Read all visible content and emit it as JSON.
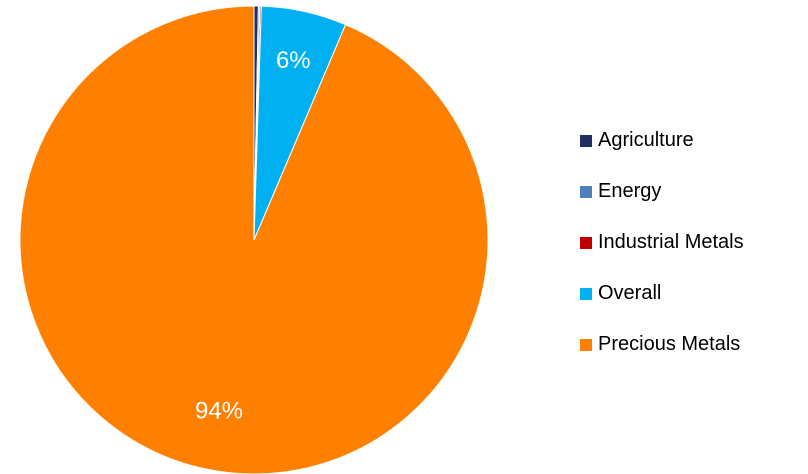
{
  "chart_data": {
    "type": "pie",
    "title": "",
    "categories": [
      "Agriculture",
      "Energy",
      "Industrial Metals",
      "Overall",
      "Precious Metals"
    ],
    "values": [
      0.3,
      0.1,
      0.1,
      5.9,
      93.6
    ],
    "data_labels": [
      "",
      "",
      "",
      "6%",
      "94%"
    ],
    "colors": [
      "#1f2f5f",
      "#4f81bd",
      "#c00000",
      "#00b0f0",
      "#ff8000"
    ],
    "legend_position": "right",
    "label_color": "#ffffff"
  }
}
